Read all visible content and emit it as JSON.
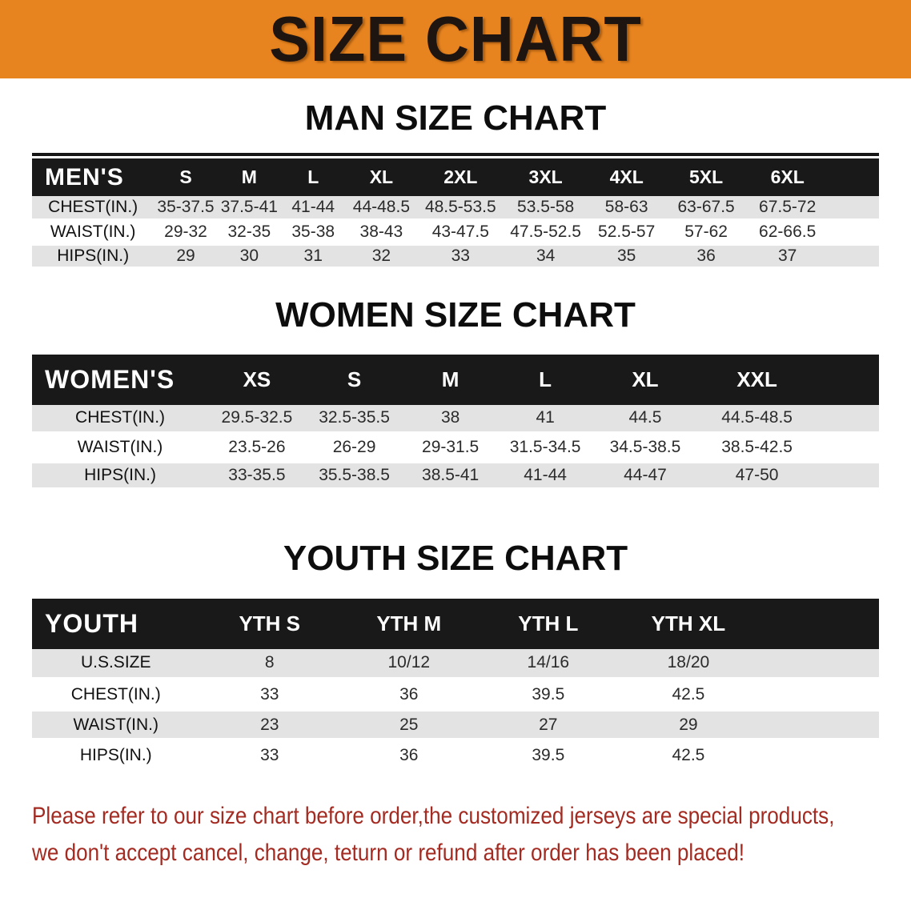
{
  "banner": {
    "title": "SIZE CHART"
  },
  "sections": [
    {
      "heading": "MAN SIZE CHART",
      "corner": "MEN'S",
      "columns": [
        "S",
        "M",
        "L",
        "XL",
        "2XL",
        "3XL",
        "4XL",
        "5XL",
        "6XL"
      ],
      "rows": [
        {
          "label": "CHEST(IN.)",
          "values": [
            "35-37.5",
            "37.5-41",
            "41-44",
            "44-48.5",
            "48.5-53.5",
            "53.5-58",
            "58-63",
            "63-67.5",
            "67.5-72"
          ]
        },
        {
          "label": "WAIST(IN.)",
          "values": [
            "29-32",
            "32-35",
            "35-38",
            "38-43",
            "43-47.5",
            "47.5-52.5",
            "52.5-57",
            "57-62",
            "62-66.5"
          ]
        },
        {
          "label": "HIPS(IN.)",
          "values": [
            "29",
            "30",
            "31",
            "32",
            "33",
            "34",
            "35",
            "36",
            "37"
          ]
        }
      ]
    },
    {
      "heading": "WOMEN SIZE CHART",
      "corner": "WOMEN'S",
      "columns": [
        "XS",
        "S",
        "M",
        "L",
        "XL",
        "XXL"
      ],
      "rows": [
        {
          "label": "CHEST(IN.)",
          "values": [
            "29.5-32.5",
            "32.5-35.5",
            "38",
            "41",
            "44.5",
            "44.5-48.5"
          ]
        },
        {
          "label": "WAIST(IN.)",
          "values": [
            "23.5-26",
            "26-29",
            "29-31.5",
            "31.5-34.5",
            "34.5-38.5",
            "38.5-42.5"
          ]
        },
        {
          "label": "HIPS(IN.)",
          "values": [
            "33-35.5",
            "35.5-38.5",
            "38.5-41",
            "41-44",
            "44-47",
            "47-50"
          ]
        }
      ]
    },
    {
      "heading": "YOUTH SIZE CHART",
      "corner": "YOUTH",
      "columns": [
        "YTH S",
        "YTH M",
        "YTH L",
        "YTH XL"
      ],
      "rows": [
        {
          "label": "U.S.SIZE",
          "values": [
            "8",
            "10/12",
            "14/16",
            "18/20"
          ]
        },
        {
          "label": "CHEST(IN.)",
          "values": [
            "33",
            "36",
            "39.5",
            "42.5"
          ]
        },
        {
          "label": "WAIST(IN.)",
          "values": [
            "23",
            "25",
            "27",
            "29"
          ]
        },
        {
          "label": "HIPS(IN.)",
          "values": [
            "33",
            "36",
            "39.5",
            "42.5"
          ]
        }
      ]
    }
  ],
  "footer": {
    "line1": "Please refer to our size chart before order,the customized jerseys are special products,",
    "line2": "we don't accept cancel, change, teturn or refund after order has been placed!"
  },
  "colors": {
    "banner_bg": "#e8841f",
    "table_header_bg": "#191919",
    "row_stripe": "#e3e3e3",
    "footer_text": "#a32b22"
  }
}
